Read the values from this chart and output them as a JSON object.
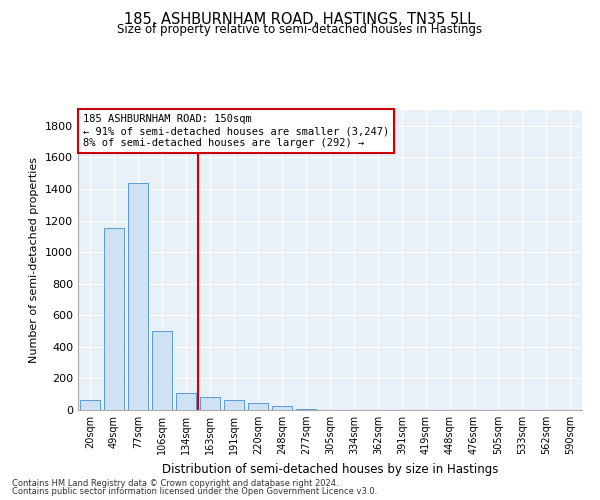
{
  "title": "185, ASHBURNHAM ROAD, HASTINGS, TN35 5LL",
  "subtitle": "Size of property relative to semi-detached houses in Hastings",
  "xlabel": "Distribution of semi-detached houses by size in Hastings",
  "ylabel": "Number of semi-detached properties",
  "categories": [
    "20sqm",
    "49sqm",
    "77sqm",
    "106sqm",
    "134sqm",
    "163sqm",
    "191sqm",
    "220sqm",
    "248sqm",
    "277sqm",
    "305sqm",
    "334sqm",
    "362sqm",
    "391sqm",
    "419sqm",
    "448sqm",
    "476sqm",
    "505sqm",
    "533sqm",
    "562sqm",
    "590sqm"
  ],
  "values": [
    65,
    1155,
    1440,
    500,
    110,
    80,
    65,
    45,
    25,
    5,
    0,
    0,
    0,
    0,
    0,
    0,
    0,
    0,
    0,
    0,
    0
  ],
  "bar_color": "#cfe2f3",
  "bar_edge_color": "#5b9bd5",
  "property_line_x": 4.5,
  "property_line_color": "#cc0000",
  "annotation_text": "185 ASHBURNHAM ROAD: 150sqm\n← 91% of semi-detached houses are smaller (3,247)\n8% of semi-detached houses are larger (292) →",
  "annotation_box_color": "#cc0000",
  "ylim": [
    0,
    1900
  ],
  "yticks": [
    0,
    200,
    400,
    600,
    800,
    1000,
    1200,
    1400,
    1600,
    1800
  ],
  "footer1": "Contains HM Land Registry data © Crown copyright and database right 2024.",
  "footer2": "Contains public sector information licensed under the Open Government Licence v3.0.",
  "plot_bg_color": "#e8f0f8"
}
